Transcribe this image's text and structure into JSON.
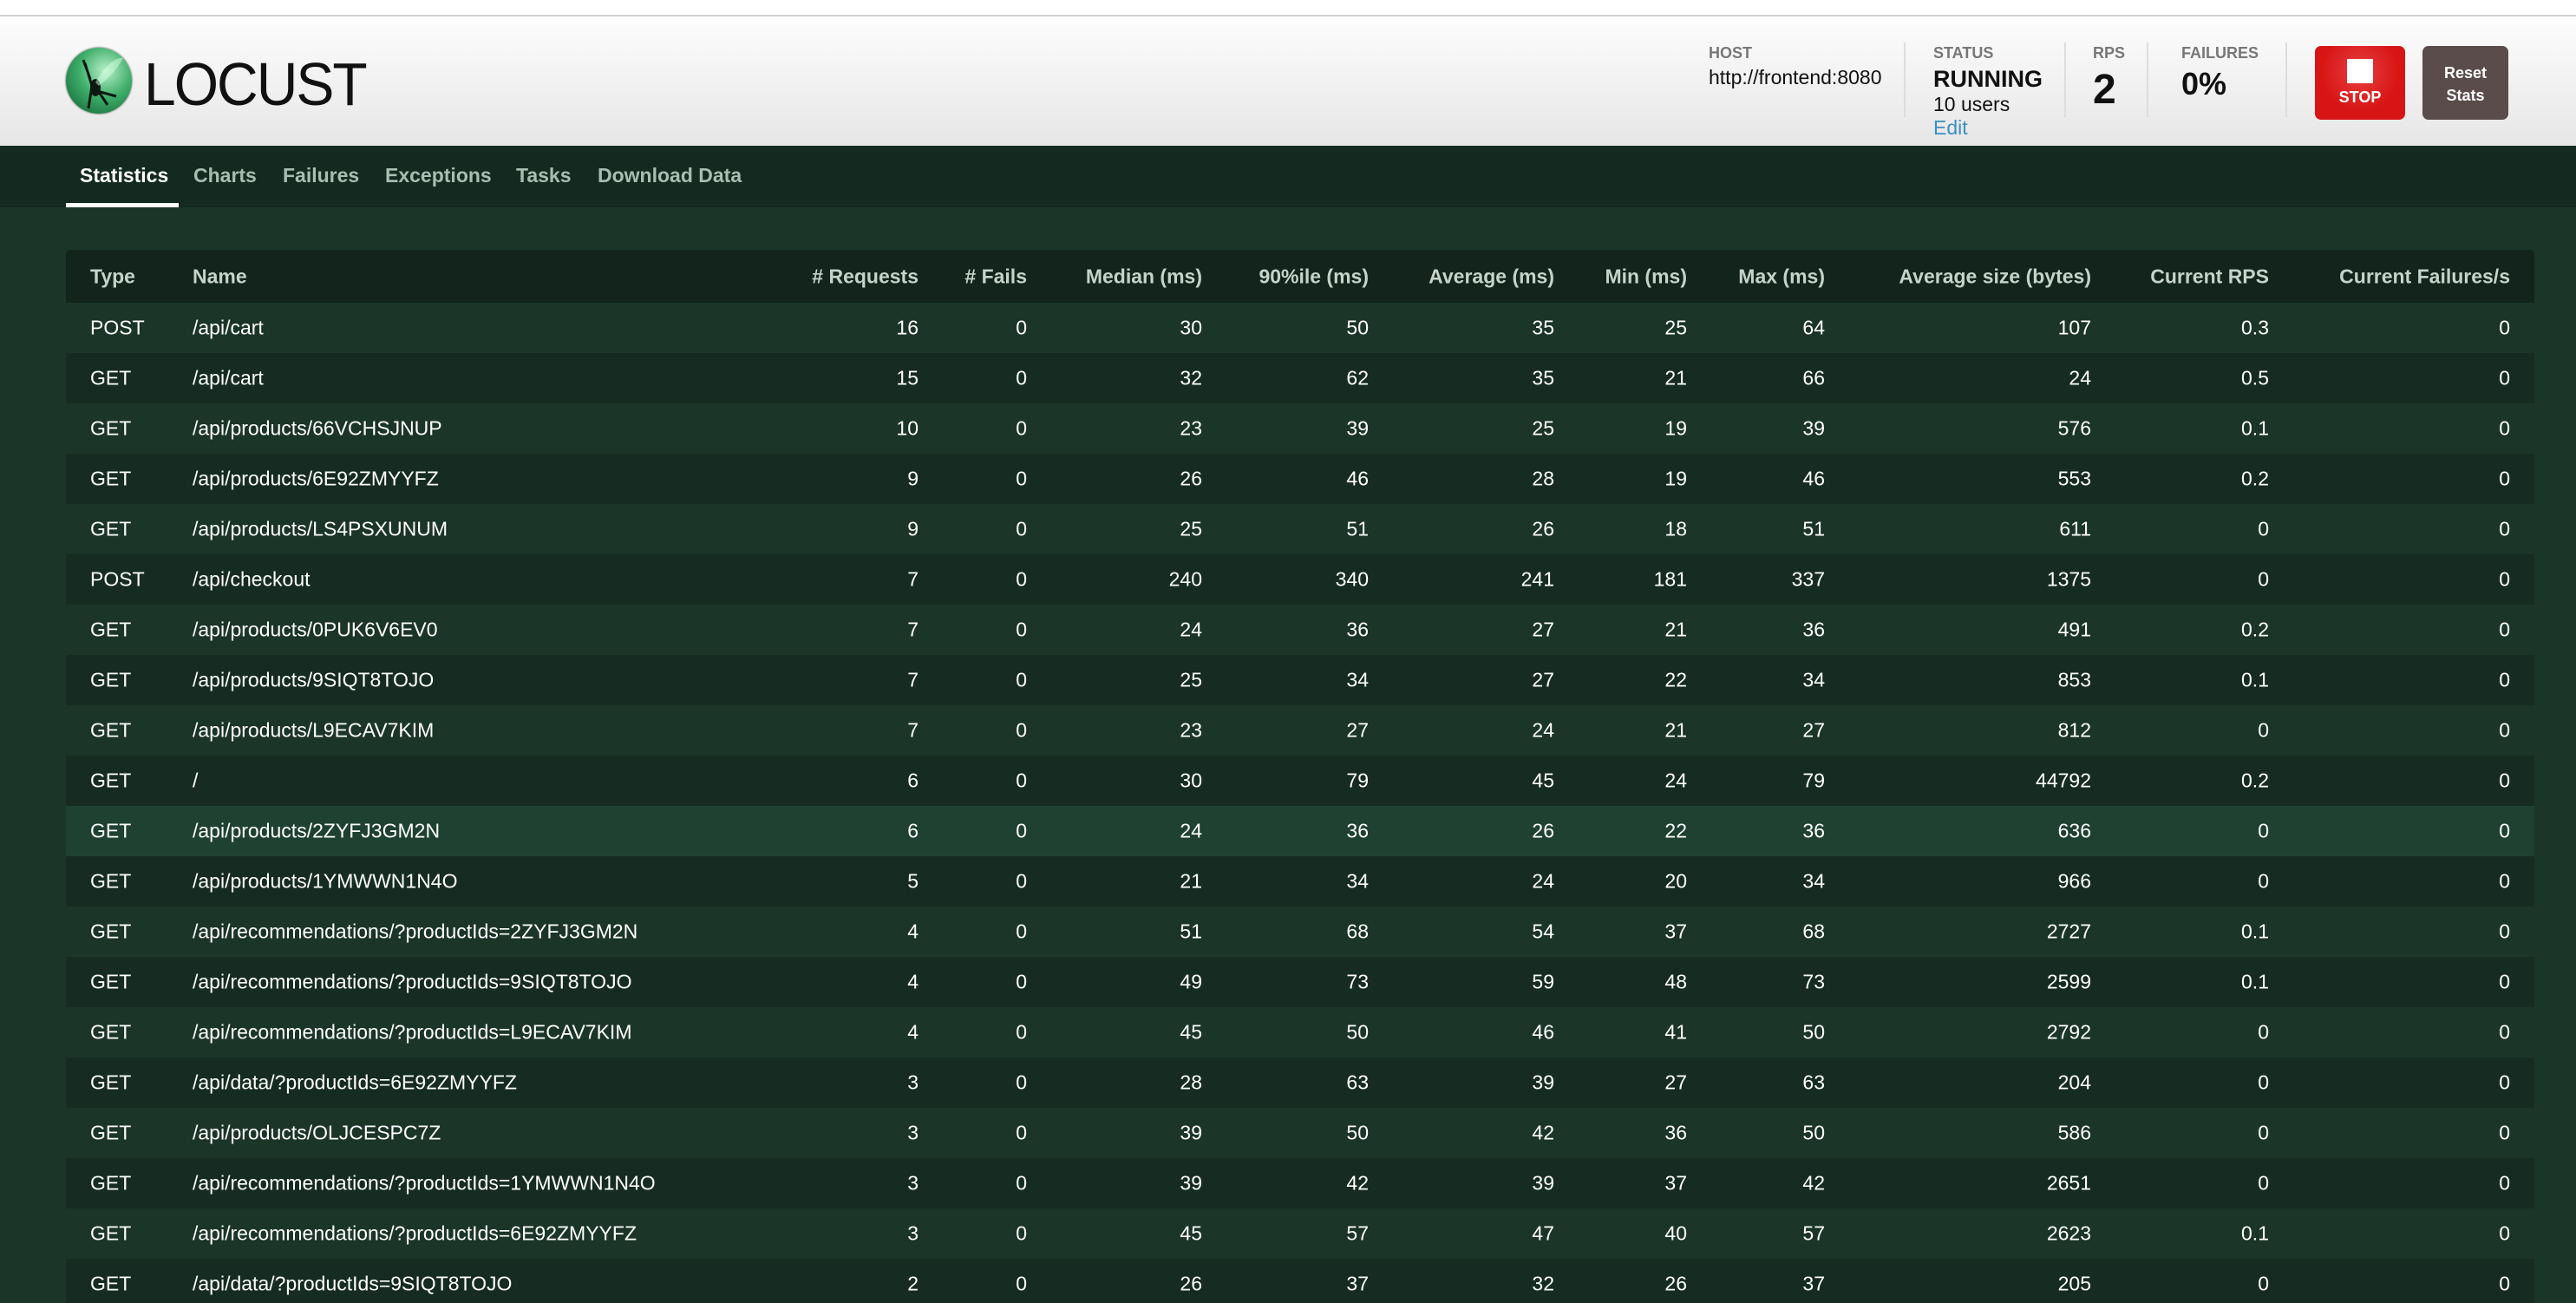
{
  "app": {
    "logo_text": "LOCUST"
  },
  "header": {
    "host": {
      "label": "HOST",
      "value": "http://frontend:8080"
    },
    "status": {
      "label": "STATUS",
      "value": "RUNNING",
      "users": "10 users",
      "edit": "Edit"
    },
    "rps": {
      "label": "RPS",
      "value": "2"
    },
    "failures": {
      "label": "FAILURES",
      "value": "0%"
    },
    "stop_label": "STOP",
    "reset_label": "Reset Stats"
  },
  "tabs": [
    {
      "label": "Statistics",
      "active": true
    },
    {
      "label": "Charts"
    },
    {
      "label": "Failures"
    },
    {
      "label": "Exceptions"
    },
    {
      "label": "Tasks"
    },
    {
      "label": "Download Data"
    }
  ],
  "colors": {
    "header_bg": "#142a20",
    "content_bg": "#1b3529",
    "stop": "#d71515",
    "reset": "#5a4c4a",
    "edit_link": "#3a8fc4"
  },
  "table": {
    "columns": [
      "Type",
      "Name",
      "# Requests",
      "# Fails",
      "Median (ms)",
      "90%ile (ms)",
      "Average (ms)",
      "Min (ms)",
      "Max (ms)",
      "Average size (bytes)",
      "Current RPS",
      "Current Failures/s"
    ],
    "rows": [
      [
        "POST",
        "/api/cart",
        "16",
        "0",
        "30",
        "50",
        "35",
        "25",
        "64",
        "107",
        "0.3",
        "0"
      ],
      [
        "GET",
        "/api/cart",
        "15",
        "0",
        "32",
        "62",
        "35",
        "21",
        "66",
        "24",
        "0.5",
        "0"
      ],
      [
        "GET",
        "/api/products/66VCHSJNUP",
        "10",
        "0",
        "23",
        "39",
        "25",
        "19",
        "39",
        "576",
        "0.1",
        "0"
      ],
      [
        "GET",
        "/api/products/6E92ZMYYFZ",
        "9",
        "0",
        "26",
        "46",
        "28",
        "19",
        "46",
        "553",
        "0.2",
        "0"
      ],
      [
        "GET",
        "/api/products/LS4PSXUNUM",
        "9",
        "0",
        "25",
        "51",
        "26",
        "18",
        "51",
        "611",
        "0",
        "0"
      ],
      [
        "POST",
        "/api/checkout",
        "7",
        "0",
        "240",
        "340",
        "241",
        "181",
        "337",
        "1375",
        "0",
        "0"
      ],
      [
        "GET",
        "/api/products/0PUK6V6EV0",
        "7",
        "0",
        "24",
        "36",
        "27",
        "21",
        "36",
        "491",
        "0.2",
        "0"
      ],
      [
        "GET",
        "/api/products/9SIQT8TOJO",
        "7",
        "0",
        "25",
        "34",
        "27",
        "22",
        "34",
        "853",
        "0.1",
        "0"
      ],
      [
        "GET",
        "/api/products/L9ECAV7KIM",
        "7",
        "0",
        "23",
        "27",
        "24",
        "21",
        "27",
        "812",
        "0",
        "0"
      ],
      [
        "GET",
        "/",
        "6",
        "0",
        "30",
        "79",
        "45",
        "24",
        "79",
        "44792",
        "0.2",
        "0"
      ],
      [
        "GET",
        "/api/products/2ZYFJ3GM2N",
        "6",
        "0",
        "24",
        "36",
        "26",
        "22",
        "36",
        "636",
        "0",
        "0"
      ],
      [
        "GET",
        "/api/products/1YMWWN1N4O",
        "5",
        "0",
        "21",
        "34",
        "24",
        "20",
        "34",
        "966",
        "0",
        "0"
      ],
      [
        "GET",
        "/api/recommendations/?productIds=2ZYFJ3GM2N",
        "4",
        "0",
        "51",
        "68",
        "54",
        "37",
        "68",
        "2727",
        "0.1",
        "0"
      ],
      [
        "GET",
        "/api/recommendations/?productIds=9SIQT8TOJO",
        "4",
        "0",
        "49",
        "73",
        "59",
        "48",
        "73",
        "2599",
        "0.1",
        "0"
      ],
      [
        "GET",
        "/api/recommendations/?productIds=L9ECAV7KIM",
        "4",
        "0",
        "45",
        "50",
        "46",
        "41",
        "50",
        "2792",
        "0",
        "0"
      ],
      [
        "GET",
        "/api/data/?productIds=6E92ZMYYFZ",
        "3",
        "0",
        "28",
        "63",
        "39",
        "27",
        "63",
        "204",
        "0",
        "0"
      ],
      [
        "GET",
        "/api/products/OLJCESPC7Z",
        "3",
        "0",
        "39",
        "50",
        "42",
        "36",
        "50",
        "586",
        "0",
        "0"
      ],
      [
        "GET",
        "/api/recommendations/?productIds=1YMWWN1N4O",
        "3",
        "0",
        "39",
        "42",
        "39",
        "37",
        "42",
        "2651",
        "0",
        "0"
      ],
      [
        "GET",
        "/api/recommendations/?productIds=6E92ZMYYFZ",
        "3",
        "0",
        "45",
        "57",
        "47",
        "40",
        "57",
        "2623",
        "0.1",
        "0"
      ],
      [
        "GET",
        "/api/data/?productIds=9SIQT8TOJO",
        "2",
        "0",
        "26",
        "37",
        "32",
        "26",
        "37",
        "205",
        "0",
        "0"
      ]
    ]
  }
}
